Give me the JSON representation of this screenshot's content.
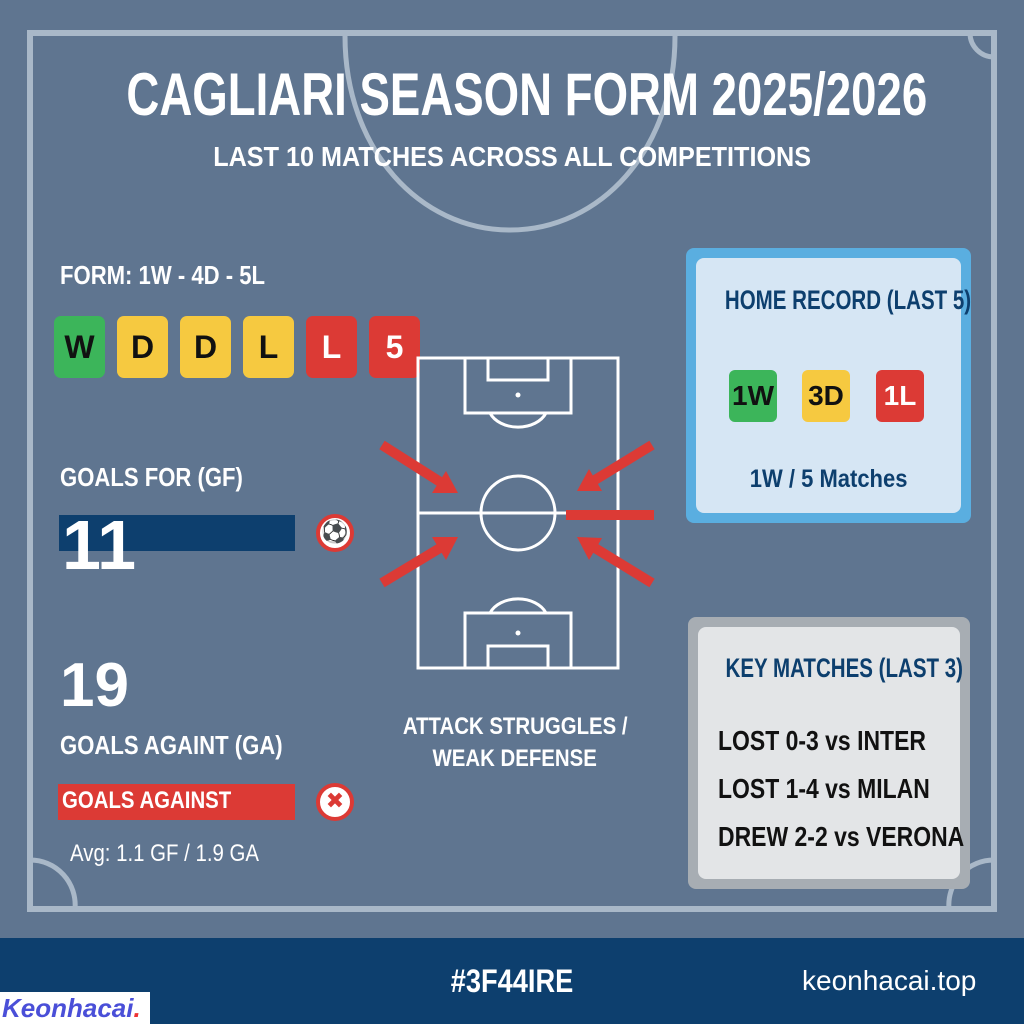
{
  "title": "CAGLIARI SEASON FORM 2025/2026",
  "subtitle": "LAST 10 MATCHES ACROSS ALL COMPETITIONS",
  "form": {
    "label": "FORM: 1W - 4D - 5L",
    "chips": [
      {
        "text": "W",
        "color": "#3cb55a",
        "fg": "#111"
      },
      {
        "text": "D",
        "color": "#f6c940",
        "fg": "#111"
      },
      {
        "text": "D",
        "color": "#f6c940",
        "fg": "#111"
      },
      {
        "text": "L",
        "color": "#f6c940",
        "fg": "#111"
      },
      {
        "text": "L",
        "color": "#dc3a35",
        "fg": "#fff"
      },
      {
        "text": "5",
        "color": "#dc3a35",
        "fg": "#fff"
      }
    ]
  },
  "goals_for": {
    "label": "GOALS FOR (GF)",
    "value": "11"
  },
  "goals_against": {
    "value": "19",
    "label": "GOALS AGAINT (GA)",
    "bar_label": "GOALS AGAINST",
    "avg": "Avg: 1.1 GF / 1.9 GA"
  },
  "pitch_caption": [
    "ATTACK STRUGGLES /",
    "WEAK DEFENSE"
  ],
  "home": {
    "title": "HOME RECORD (LAST 5)",
    "pills": [
      {
        "text": "1W",
        "color": "#3cb55a"
      },
      {
        "text": "3D",
        "color": "#f6c940"
      },
      {
        "text": "1L",
        "color": "#dc3a35"
      }
    ],
    "summary": "1W / 5 Matches"
  },
  "key_matches": {
    "title": "KEY MATCHES (LAST 3)",
    "items": [
      "LOST 0-3 vs INTER",
      "LOST 1-4 vs MILAN",
      "DREW 2-2 vs VERONA"
    ]
  },
  "footer": {
    "code": "#3F44IRE",
    "site": "keonhacai.top",
    "logo": "Keonhacai."
  },
  "colors": {
    "background": "#5f7590",
    "footer": "#0d3f6e",
    "gf_bar": "#0d3f6e",
    "ga_bar": "#dc3a35"
  }
}
